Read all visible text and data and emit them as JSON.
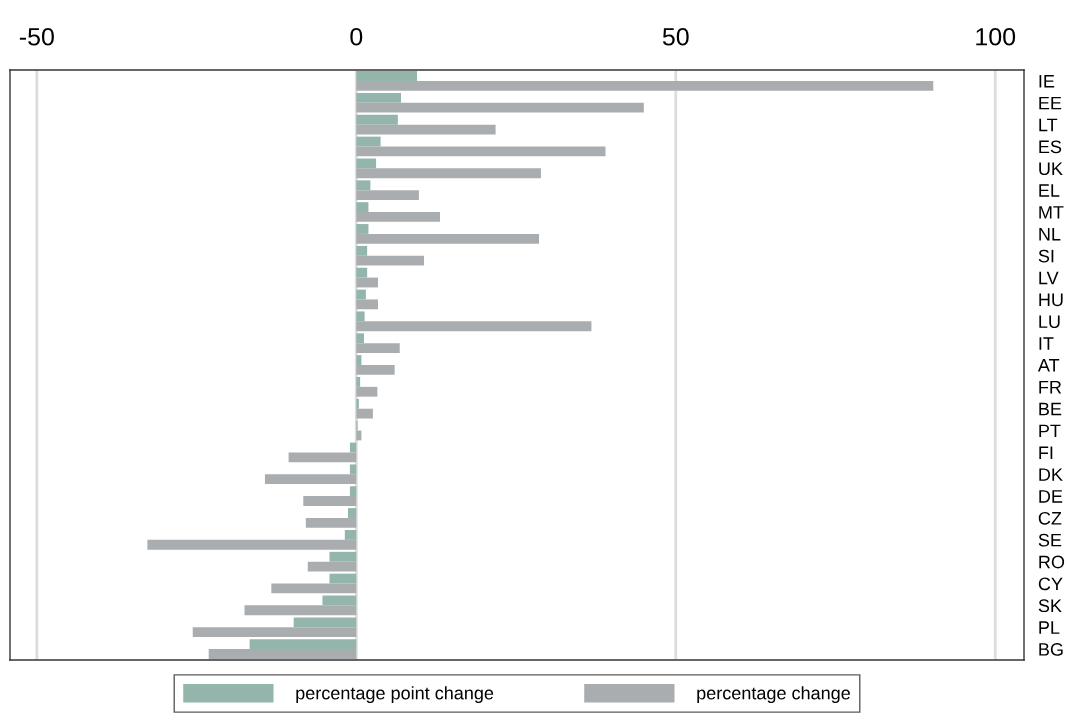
{
  "chart_data": {
    "type": "bar",
    "orientation": "horizontal",
    "categories": [
      "IE",
      "EE",
      "LT",
      "ES",
      "UK",
      "EL",
      "MT",
      "NL",
      "SI",
      "LV",
      "HU",
      "LU",
      "IT",
      "AT",
      "FR",
      "BE",
      "PT",
      "FI",
      "DK",
      "DE",
      "CZ",
      "SE",
      "RO",
      "CY",
      "SK",
      "PL",
      "BG"
    ],
    "series": [
      {
        "name": "percentage point change",
        "color": "#93b5ab",
        "values": [
          9.5,
          7.0,
          6.5,
          3.8,
          3.1,
          2.2,
          1.9,
          1.9,
          1.7,
          1.7,
          1.5,
          1.3,
          1.2,
          0.8,
          0.6,
          0.4,
          0.2,
          -1.0,
          -1.0,
          -1.0,
          -1.3,
          -1.8,
          -4.2,
          -4.2,
          -5.3,
          -9.8,
          -16.7
        ]
      },
      {
        "name": "percentage change",
        "color": "#aaadb0",
        "values": [
          90.3,
          45.0,
          21.8,
          39.0,
          28.9,
          9.8,
          13.1,
          28.6,
          10.6,
          3.4,
          3.4,
          36.8,
          6.8,
          6.0,
          3.3,
          2.6,
          0.8,
          -10.6,
          -14.3,
          -8.3,
          -7.9,
          -32.7,
          -7.6,
          -13.3,
          -17.5,
          -25.6,
          -23.1
        ]
      }
    ],
    "xlim": [
      -54.2,
      104.5
    ],
    "xticks": [
      -50,
      0,
      50,
      100
    ],
    "grid": "x",
    "legend": "bottom"
  }
}
